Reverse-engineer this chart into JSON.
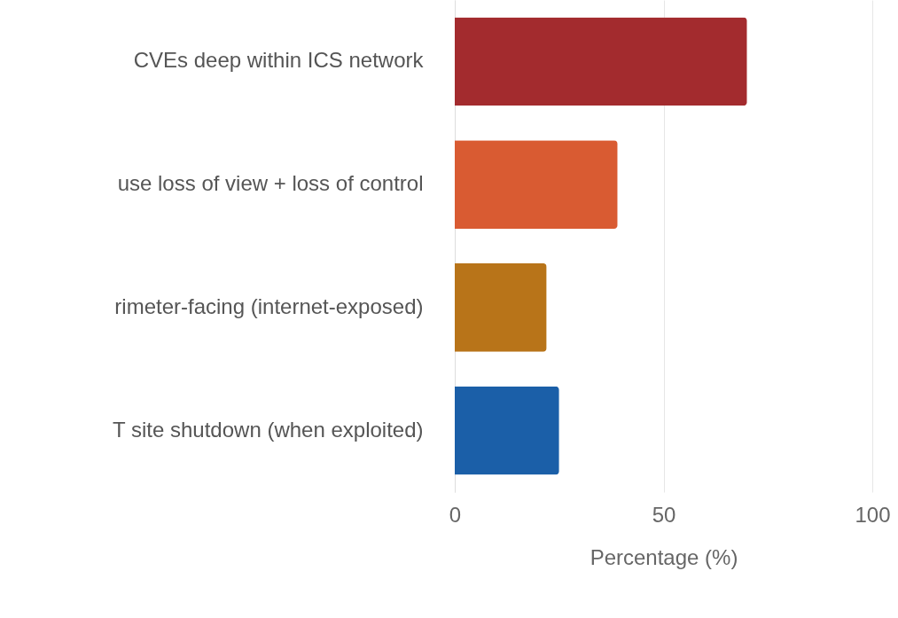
{
  "chart_data": {
    "type": "bar",
    "orientation": "horizontal",
    "categories": [
      "CVEs deep within ICS network",
      "use loss of view + loss of control",
      "rimeter-facing (internet-exposed)",
      "T site shutdown (when exploited)"
    ],
    "values": [
      70,
      39,
      22,
      25
    ],
    "colors": [
      "#a32b2e",
      "#d95b32",
      "#b87419",
      "#1b5fa8"
    ],
    "xlim": [
      0,
      100
    ],
    "xticks": [
      0,
      50,
      100
    ],
    "xlabel": "Percentage (%)",
    "grid": "x"
  }
}
